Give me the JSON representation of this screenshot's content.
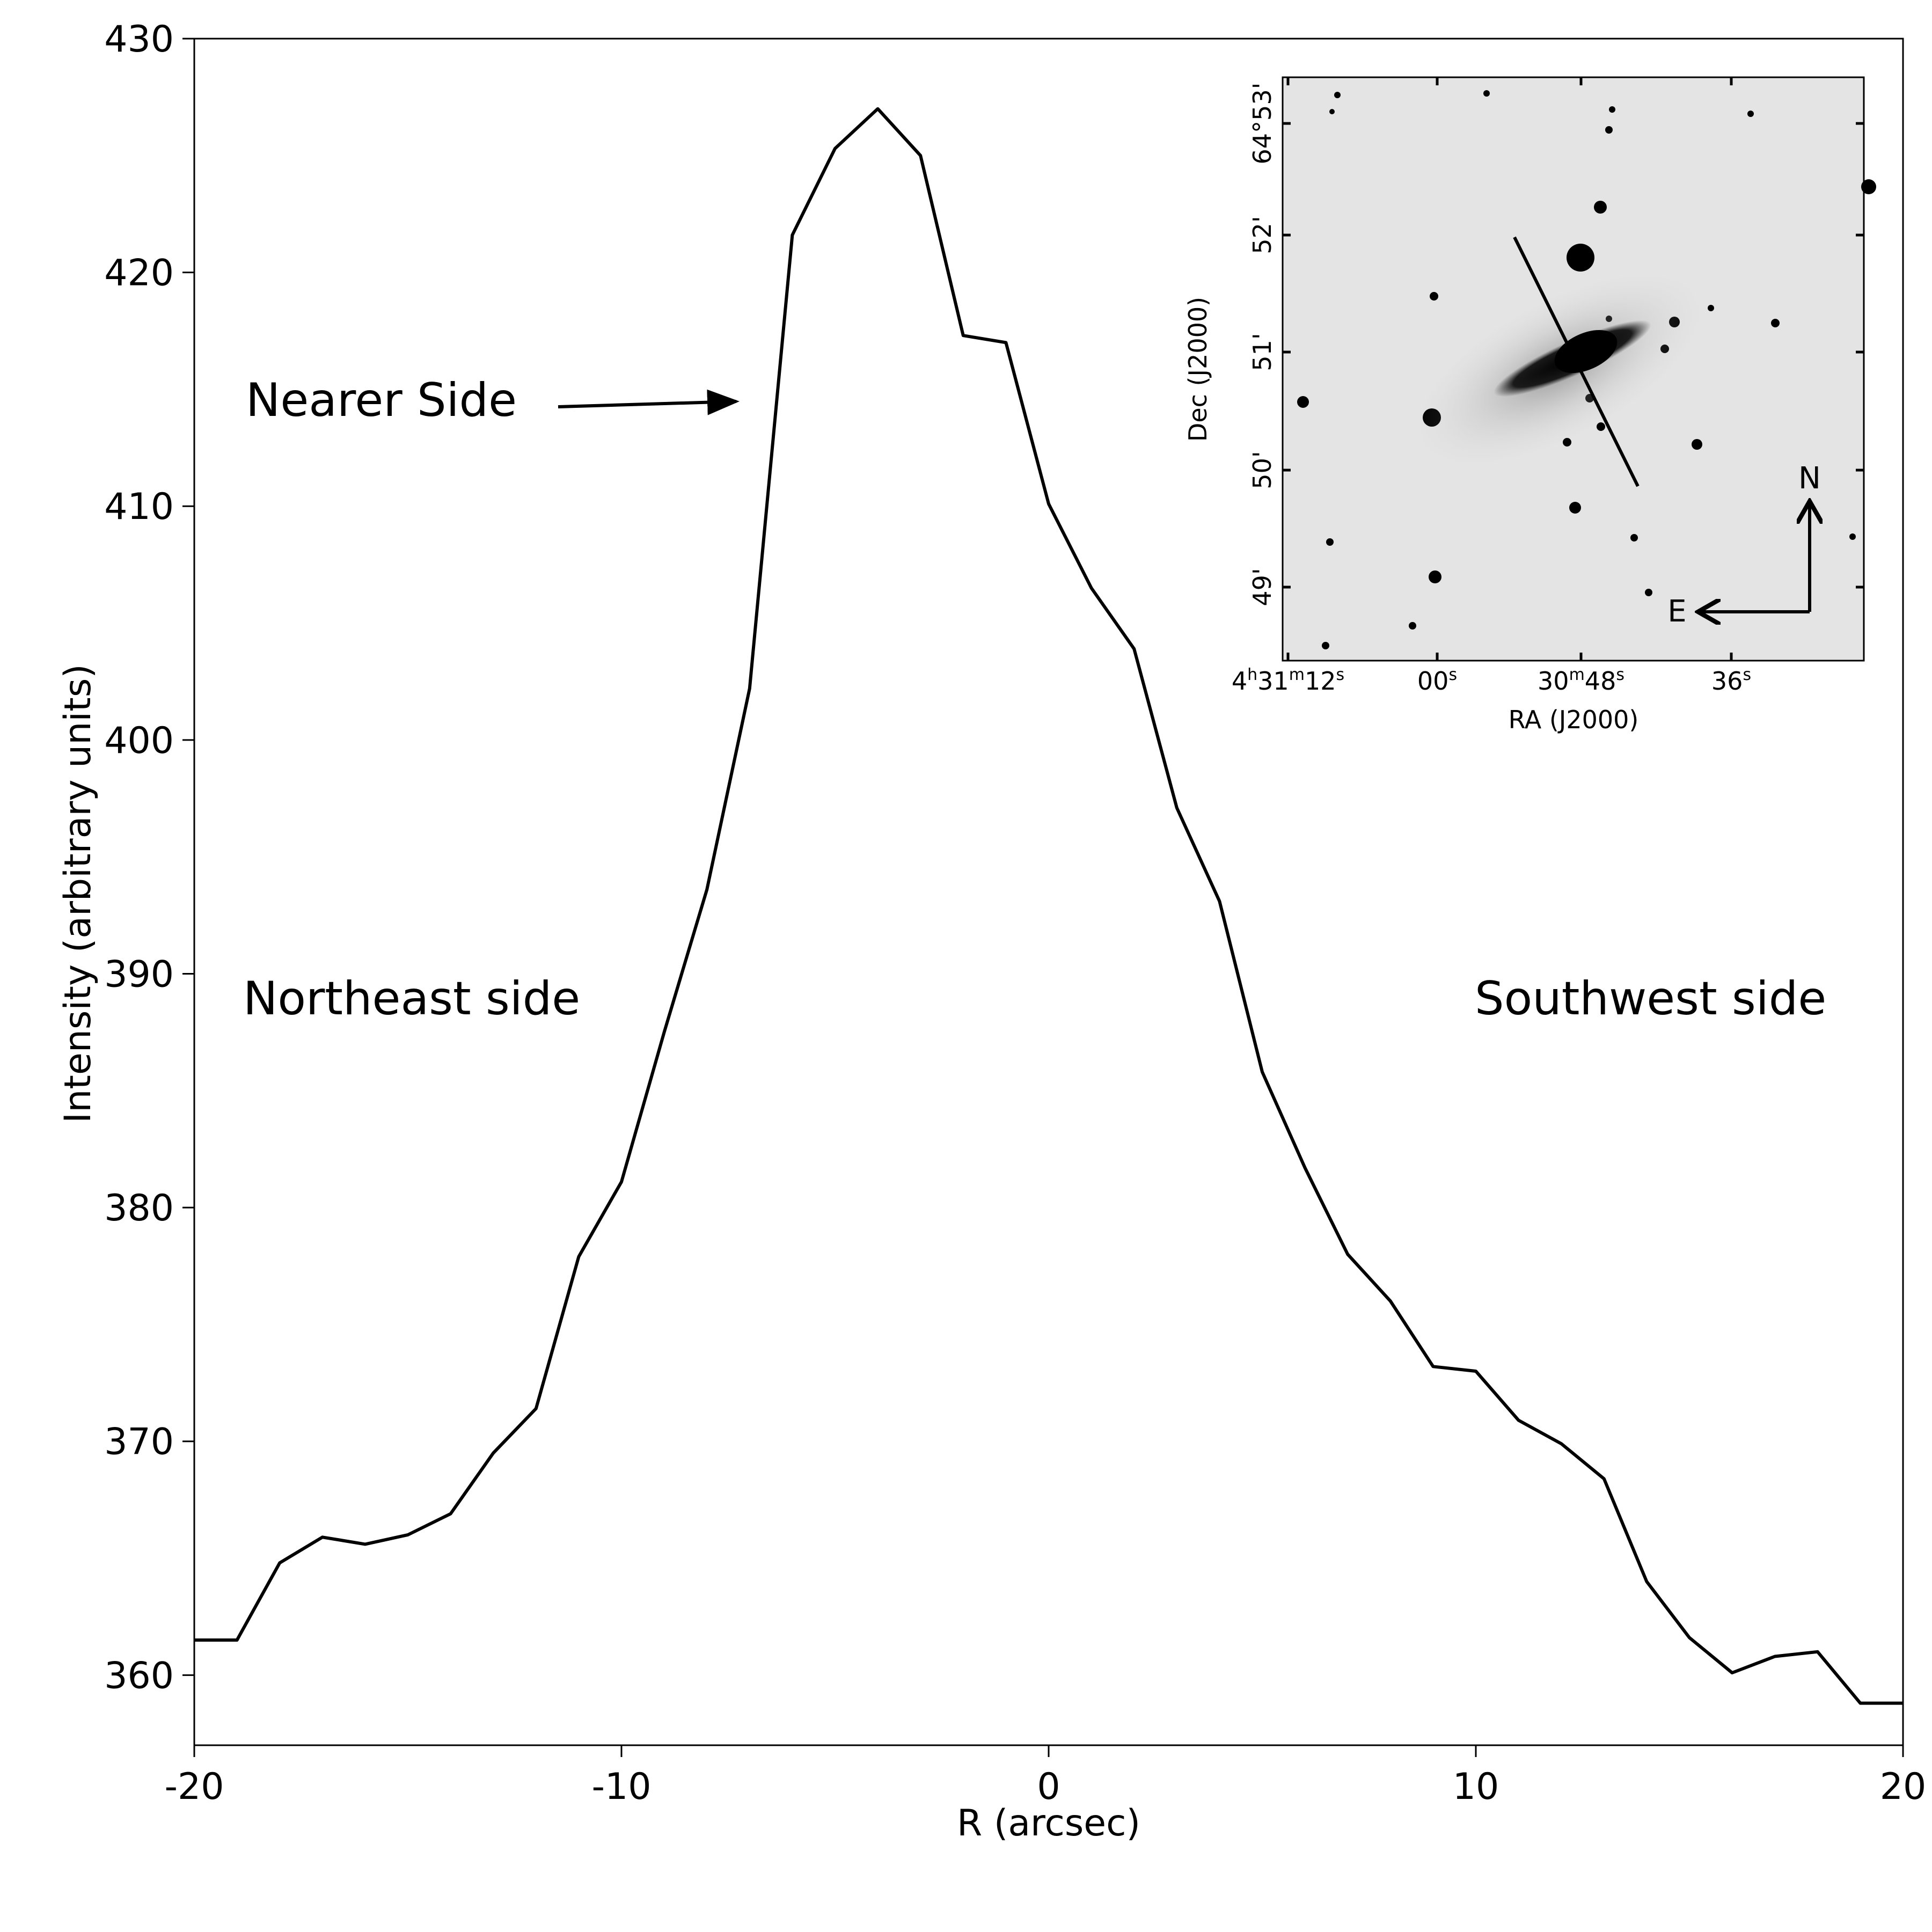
{
  "chart_data": {
    "type": "line",
    "title": "",
    "xlabel": "R (arcsec)",
    "ylabel": "Intensity (arbitrary units)",
    "xlim": [
      -20,
      20
    ],
    "ylim": [
      357,
      430
    ],
    "xticks": [
      -20,
      -10,
      0,
      10,
      20
    ],
    "xtick_labels": [
      "-20",
      "-10",
      "0",
      "10",
      "20"
    ],
    "yticks": [
      360,
      370,
      380,
      390,
      400,
      410,
      420,
      430
    ],
    "ytick_labels": [
      "360",
      "370",
      "380",
      "390",
      "400",
      "410",
      "420",
      "430"
    ],
    "grid": false,
    "legend": "none",
    "series": [
      {
        "x": [
          -20,
          -19,
          -18,
          -17,
          -16,
          -15,
          -14,
          -13,
          -12,
          -11,
          -10,
          -9,
          -8,
          -7,
          -6,
          -5,
          -4,
          -3,
          -2,
          -1,
          0,
          1,
          2,
          3,
          4,
          5,
          6,
          7,
          8,
          9,
          10,
          11,
          12,
          13,
          14,
          15,
          16,
          17,
          18,
          19,
          20
        ],
        "y": [
          361.5,
          361.5,
          364.8,
          365.9,
          365.6,
          366.0,
          366.9,
          369.5,
          371.4,
          377.9,
          381.1,
          387.5,
          393.6,
          402.2,
          421.6,
          425.3,
          427.0,
          425.0,
          417.3,
          417.0,
          410.1,
          406.5,
          403.9,
          397.1,
          393.1,
          385.8,
          381.7,
          378.0,
          376.0,
          373.2,
          373.0,
          370.9,
          369.9,
          368.4,
          364.0,
          361.6,
          360.1,
          360.8,
          361.0,
          358.8,
          358.8
        ]
      }
    ],
    "annotations": {
      "nearer_side": "Nearer Side",
      "northeast": "Northeast side",
      "southwest": "Southwest side"
    }
  },
  "inset": {
    "xlabel": "RA (J2000)",
    "ylabel": "Dec (J2000)",
    "ra_ticks": [
      {
        "h": "4",
        "hu": "h",
        "m": "31",
        "mu": "m",
        "s": "12",
        "su": "s"
      },
      {
        "s": "00",
        "su": "s"
      },
      {
        "m": "30",
        "mu": "m",
        "s": "48",
        "su": "s"
      },
      {
        "s": "36",
        "su": "s"
      }
    ],
    "dec_ticks": [
      "64°53'",
      "52'",
      "51'",
      "50'",
      "49'"
    ],
    "compass": {
      "north": "N",
      "east": "E"
    }
  }
}
